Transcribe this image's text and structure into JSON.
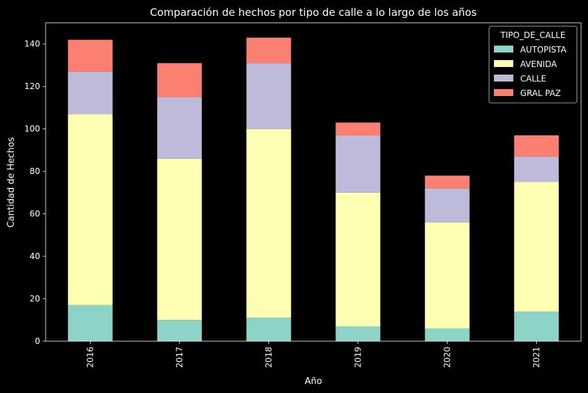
{
  "chart_data": {
    "type": "bar",
    "stacked": true,
    "title": "Comparación de hechos por tipo de calle a lo largo de los años",
    "xlabel": "Año",
    "ylabel": "Cantidad de Hechos",
    "categories": [
      "2016",
      "2017",
      "2018",
      "2019",
      "2020",
      "2021"
    ],
    "ylim": [
      0,
      150
    ],
    "yticks": [
      0,
      20,
      40,
      60,
      80,
      100,
      120,
      140
    ],
    "grid": false,
    "legend": {
      "title": "TIPO_DE_CALLE",
      "placement": "top-right"
    },
    "series": [
      {
        "name": "AUTOPISTA",
        "color": "#8dd3c7",
        "values": [
          17,
          10,
          11,
          7,
          6,
          14
        ]
      },
      {
        "name": "AVENIDA",
        "color": "#ffffb3",
        "values": [
          90,
          76,
          89,
          63,
          50,
          61
        ]
      },
      {
        "name": "CALLE",
        "color": "#bebada",
        "values": [
          20,
          29,
          31,
          27,
          16,
          12
        ]
      },
      {
        "name": "GRAL PAZ",
        "color": "#fb8072",
        "values": [
          15,
          16,
          12,
          6,
          6,
          10
        ]
      }
    ]
  }
}
